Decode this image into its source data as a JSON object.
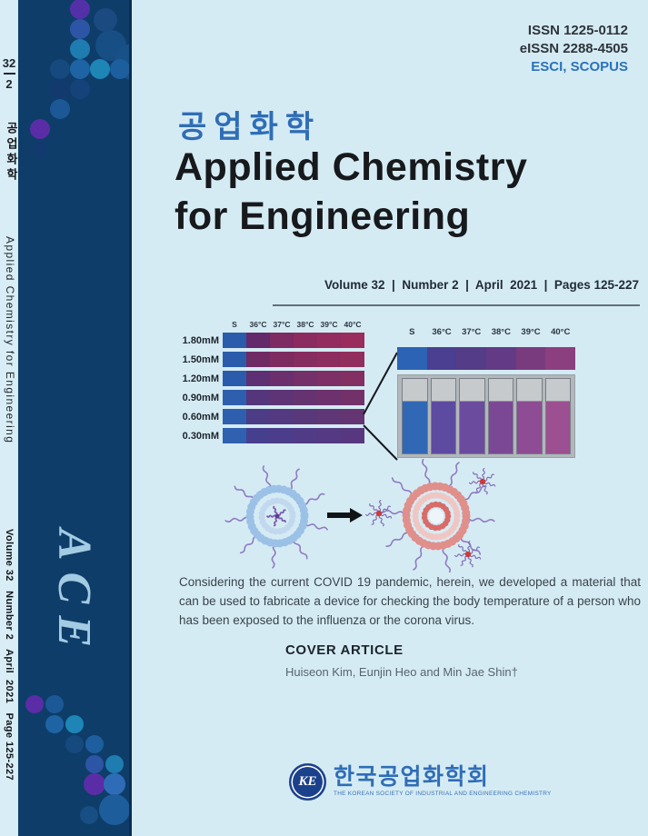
{
  "spine": {
    "issue_top": "32",
    "issue_bottom": "2",
    "journal_kr_vertical": "공업화학",
    "journal_en_vertical": "Applied Chemistry for Engineering",
    "volume_vertical": "Volume 32   Number 2   April  2021   Page 125-227",
    "monogram": "ACE"
  },
  "masthead": {
    "issn": "ISSN 1225-0112",
    "eissn": "eISSN 2288-4505",
    "indexing": "ESCI, SCOPUS",
    "title_kr": "공업화학",
    "title_en_line1": "Applied Chemistry",
    "title_en_line2": "for Engineering",
    "issue_line": "Volume 32  |  Number 2  |  April  2021  |  Pages 125-227"
  },
  "figure": {
    "matrix": {
      "col_headers": [
        "S",
        "36°C",
        "37°C",
        "38°C",
        "39°C",
        "40°C"
      ],
      "row_labels": [
        "1.80mM",
        "1.50mM",
        "1.20mM",
        "0.90mM",
        "0.60mM",
        "0.30mM"
      ],
      "cell_colors": [
        [
          "#2b5cab",
          "#63296b",
          "#7e2a63",
          "#8c2b60",
          "#932d5f",
          "#992e5e"
        ],
        [
          "#2b5cab",
          "#6f2a64",
          "#7d2b61",
          "#862c60",
          "#8d2d5f",
          "#922e5e"
        ],
        [
          "#2b5cab",
          "#5e2f73",
          "#6c2f6e",
          "#752f69",
          "#7d2f66",
          "#832f63"
        ],
        [
          "#2e5fae",
          "#55357c",
          "#5e3476",
          "#663371",
          "#6d326d",
          "#723269"
        ],
        [
          "#2e5fae",
          "#4c3c86",
          "#533980",
          "#59387a",
          "#5f3676",
          "#643572"
        ],
        [
          "#3061b0",
          "#463f8e",
          "#4b3d8a",
          "#4f3b86",
          "#533a82",
          "#573880"
        ]
      ]
    },
    "panel": {
      "col_headers": [
        "S",
        "36°C",
        "37°C",
        "38°C",
        "39°C",
        "40°C"
      ],
      "strip_colors": [
        "#2c63b4",
        "#4a3f90",
        "#543c88",
        "#623a85",
        "#793b7e",
        "#8c3f7e"
      ],
      "cuvette_colors": [
        "#3068b6",
        "#5c4ba0",
        "#6b4b9e",
        "#7b4896",
        "#8d4c93",
        "#9c5092"
      ]
    }
  },
  "abstract": "Considering the current COVID 19 pandemic, herein, we developed a material that can be used to fabricate a device for checking the body temperature of a person who has been exposed to the influenza or the corona virus.",
  "cover_article": {
    "heading": "COVER ARTICLE",
    "authors": "Huiseon Kim, Eunjin Heo and Min Jae Shin†"
  },
  "publisher": {
    "emblem_text": "KE",
    "name_kr": "한국공업화학회",
    "name_en": "THE KOREAN SOCIETY OF INDUSTRIAL AND ENGINEERING CHEMISTRY"
  },
  "colors": {
    "page_background": "#d5ebf4",
    "band_navy": "#0e3d69",
    "title_blue": "#2f6db6",
    "indexing_blue": "#2b72ba",
    "monogram_blue": "#a3cbe3"
  }
}
